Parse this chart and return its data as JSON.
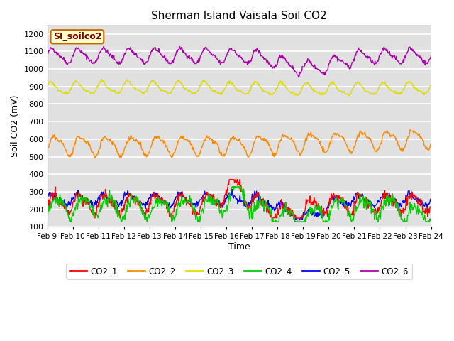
{
  "title": "Sherman Island Vaisala Soil CO2",
  "xlabel": "Time",
  "ylabel": "Soil CO2 (mV)",
  "ylim": [
    100,
    1250
  ],
  "yticks": [
    100,
    200,
    300,
    400,
    500,
    600,
    700,
    800,
    900,
    1000,
    1100,
    1200
  ],
  "x_labels": [
    "Feb 9",
    "Feb 10",
    "Feb 11",
    "Feb 12",
    "Feb 13",
    "Feb 14",
    "Feb 15",
    "Feb 16",
    "Feb 17",
    "Feb 18",
    "Feb 19",
    "Feb 20",
    "Feb 21",
    "Feb 22",
    "Feb 23",
    "Feb 24"
  ],
  "legend_label": "SI_soilco2",
  "legend_box_color": "#ffffcc",
  "legend_box_edge": "#cc6600",
  "legend_text_color": "#800000",
  "series_colors": {
    "CO2_1": "#ff0000",
    "CO2_2": "#ff8800",
    "CO2_3": "#dddd00",
    "CO2_4": "#00cc00",
    "CO2_5": "#0000ff",
    "CO2_6": "#aa00aa"
  },
  "bg_color": "#e0e0e0",
  "fig_color": "#ffffff",
  "grid_color": "#ffffff",
  "n_points": 720,
  "figsize": [
    6.4,
    4.8
  ],
  "dpi": 100
}
